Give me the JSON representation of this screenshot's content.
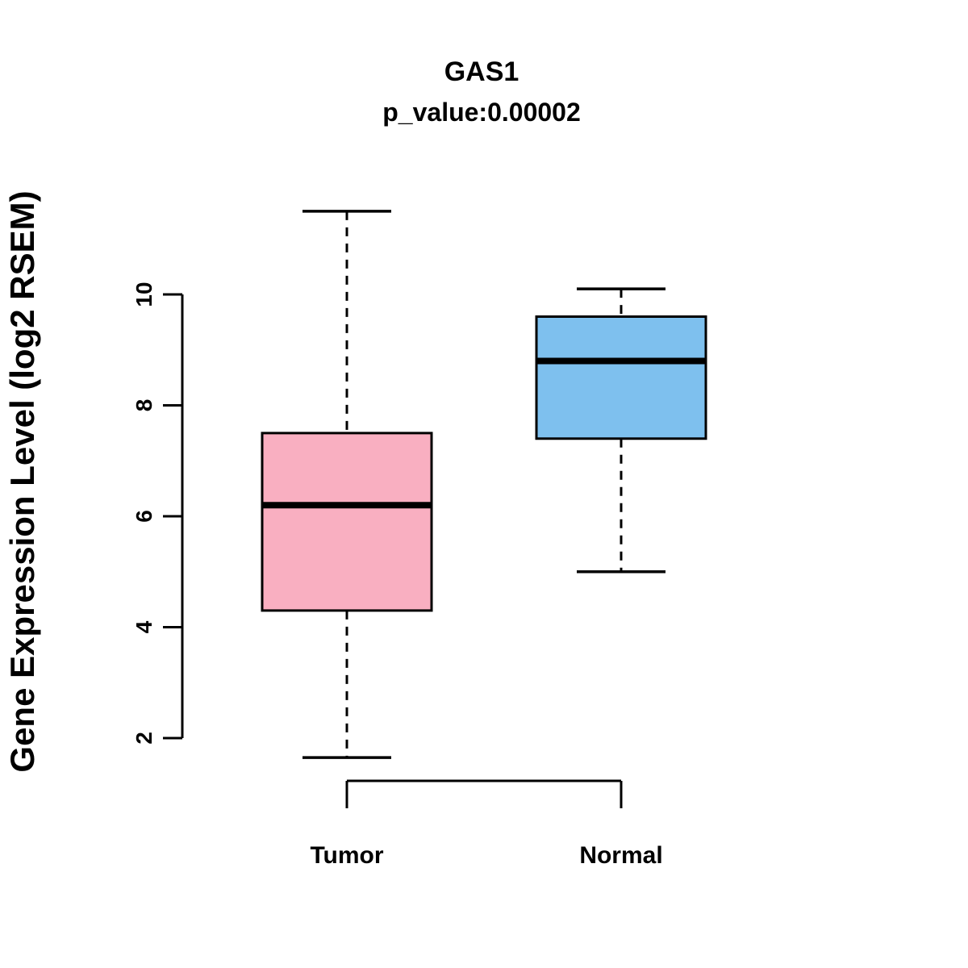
{
  "title": "GAS1",
  "subtitle": "p_value:0.00002",
  "ylabel": "Gene Expression Level (log2 RSEM)",
  "chart_data": {
    "type": "boxplot",
    "title": "GAS1",
    "subtitle": "p_value:0.00002",
    "ylabel": "Gene Expression Level (log2 RSEM)",
    "categories": [
      "Tumor",
      "Normal"
    ],
    "series": [
      {
        "name": "Tumor",
        "color": "#F9AFC1",
        "min": 1.65,
        "q1": 4.3,
        "median": 6.2,
        "q3": 7.5,
        "max": 11.5
      },
      {
        "name": "Normal",
        "color": "#7EC0EE",
        "min": 5.0,
        "q1": 7.4,
        "median": 8.8,
        "q3": 9.6,
        "max": 10.1
      }
    ],
    "yticks": [
      2,
      4,
      6,
      8,
      10
    ],
    "ylim": [
      2,
      10
    ],
    "grid": false,
    "legend": "none",
    "stroke_color": "#000000"
  }
}
